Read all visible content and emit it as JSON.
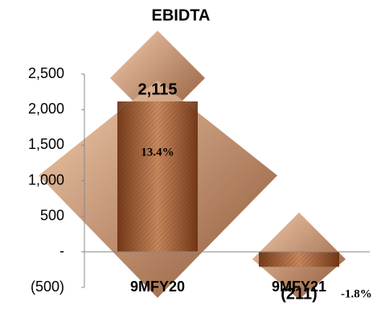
{
  "chart_data": {
    "type": "bar",
    "title": "EBIDTA",
    "categories": [
      "9MFY20",
      "9MFY21"
    ],
    "values": [
      2115,
      -211
    ],
    "value_labels": [
      "2,115",
      "(211)"
    ],
    "annotations": [
      "13.4%",
      "-1.8%"
    ],
    "color": "#a0522d",
    "ylim": [
      -500,
      2500
    ],
    "yticks": [
      {
        "value": -500,
        "label": "(500)"
      },
      {
        "value": 0,
        "label": "-"
      },
      500,
      {
        "value": 1000,
        "label": "1,000"
      },
      {
        "value": 1500,
        "label": "1,500"
      },
      {
        "value": 2000,
        "label": "2,000"
      },
      {
        "value": 2500,
        "label": "2,500"
      }
    ]
  }
}
